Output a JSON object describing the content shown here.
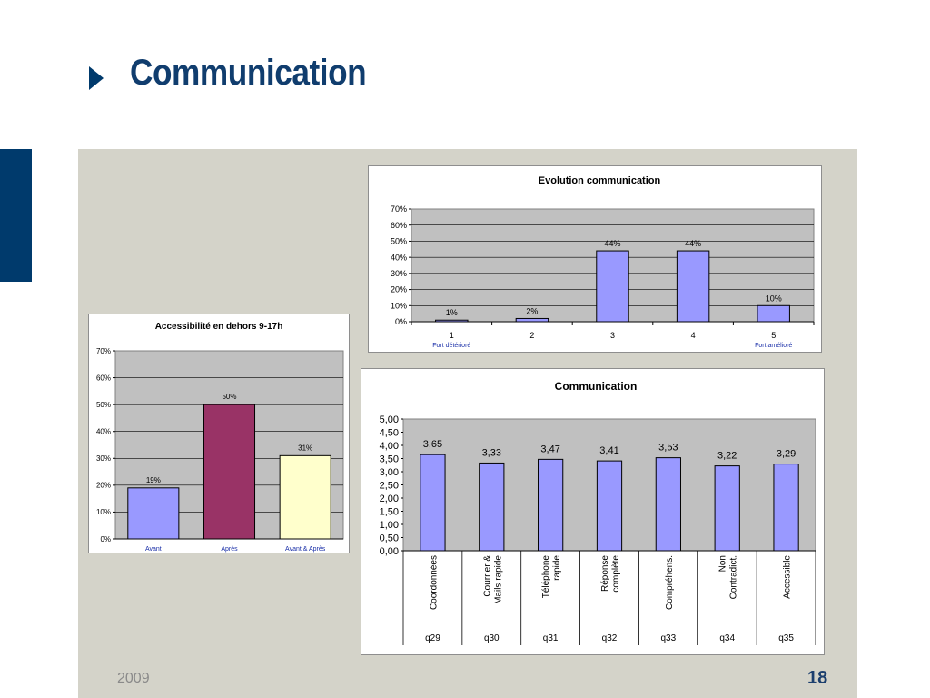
{
  "slide": {
    "title": "Communication",
    "footer_year": "2009",
    "page_number": "18",
    "colors": {
      "title": "#103d6e",
      "accent_bar": "#003a6c",
      "panel": "#d4d3c9"
    }
  },
  "chart_data": [
    {
      "id": "evolution",
      "type": "bar",
      "title": "Evolution communication",
      "categories": [
        "1",
        "2",
        "3",
        "4",
        "5"
      ],
      "category_sublabels": [
        "Fort détérioré",
        "",
        "",
        "",
        "Fort amélioré"
      ],
      "values": [
        0.01,
        0.02,
        0.44,
        0.44,
        0.1
      ],
      "data_labels": [
        "1%",
        "2%",
        "44%",
        "44%",
        "10%"
      ],
      "ylim": [
        0,
        0.7
      ],
      "yticks": [
        "0%",
        "10%",
        "20%",
        "30%",
        "40%",
        "50%",
        "60%",
        "70%"
      ],
      "bar_color": "#9999ff",
      "plot_background": "#c0c0c0",
      "grid": true
    },
    {
      "id": "accessibilite",
      "type": "bar",
      "title": "Accessibilité en dehors 9-17h",
      "categories": [
        "Avant",
        "Après",
        "Avant & Après"
      ],
      "values": [
        0.19,
        0.5,
        0.31
      ],
      "data_labels": [
        "19%",
        "50%",
        "31%"
      ],
      "bar_colors": [
        "#9999ff",
        "#993366",
        "#ffffcc"
      ],
      "ylim": [
        0,
        0.7
      ],
      "yticks": [
        "0%",
        "10%",
        "20%",
        "30%",
        "40%",
        "50%",
        "60%",
        "70%"
      ],
      "plot_background": "#c0c0c0",
      "grid": true
    },
    {
      "id": "communication",
      "type": "bar",
      "title": "Communication",
      "categories": [
        "Coordonnées",
        "Courrier & Mails rapide",
        "Téléphone rapide",
        "Réponse complète",
        "Compréhens.",
        "Non Contradict.",
        "Accessible"
      ],
      "category_lines": [
        [
          "Coordonnées"
        ],
        [
          "Courrier &",
          "Mails rapide"
        ],
        [
          "Téléphone",
          "rapide"
        ],
        [
          "Réponse",
          "complète"
        ],
        [
          "Compréhens."
        ],
        [
          "Non",
          "Contradict."
        ],
        [
          "Accessible"
        ]
      ],
      "codes": [
        "q29",
        "q30",
        "q31",
        "q32",
        "q33",
        "q34",
        "q35"
      ],
      "values": [
        3.65,
        3.33,
        3.47,
        3.41,
        3.53,
        3.22,
        3.29
      ],
      "data_labels": [
        "3,65",
        "3,33",
        "3,47",
        "3,41",
        "3,53",
        "3,22",
        "3,29"
      ],
      "ylim": [
        0,
        5
      ],
      "yticks": [
        "0,00",
        "0,50",
        "1,00",
        "1,50",
        "2,00",
        "2,50",
        "3,00",
        "3,50",
        "4,00",
        "4,50",
        "5,00"
      ],
      "bar_color": "#9999ff",
      "plot_background": "#c0c0c0",
      "grid": false
    }
  ]
}
